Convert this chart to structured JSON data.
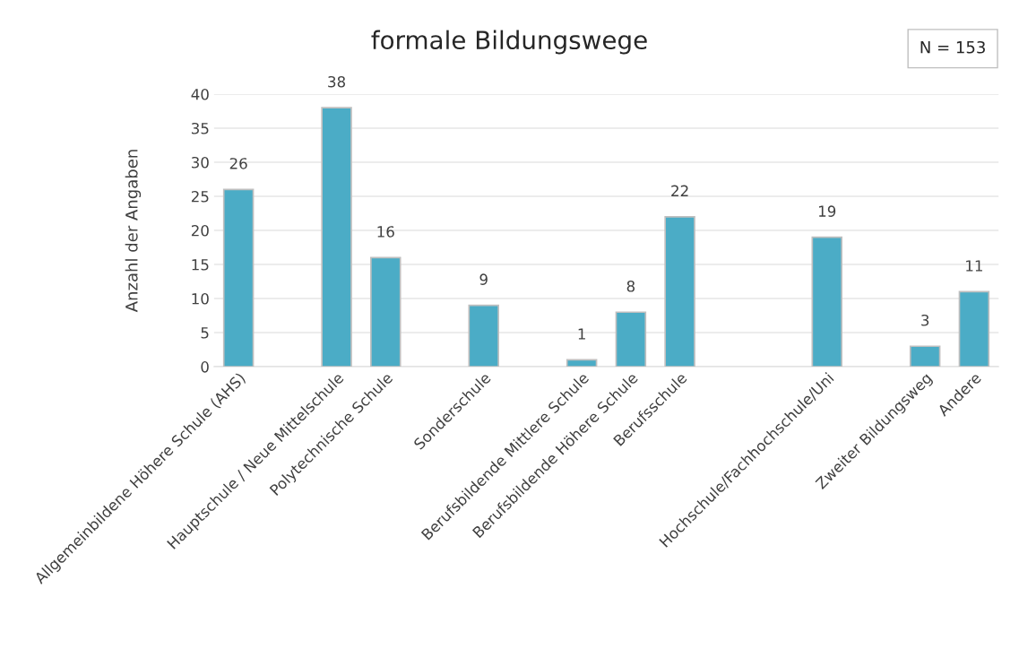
{
  "chart_data": {
    "type": "bar",
    "title": "formale Bildungswege",
    "ylabel": "Anzahl der Angaben",
    "categories": [
      "Allgemeinbildene Höhere Schule (AHS)",
      null,
      "Hauptschule / Neue Mittelschule",
      "Polytechnische Schule",
      null,
      "Sonderschule",
      null,
      "Berufsbildende Mittlere Schule",
      "Berufsbildende Höhere Schule",
      "Berufsschule",
      null,
      null,
      "Hochschule/Fachhochschule/Uni",
      null,
      "Zweiter Bildungsweg",
      "Andere"
    ],
    "values": [
      26,
      null,
      38,
      16,
      null,
      9,
      null,
      1,
      8,
      22,
      null,
      null,
      19,
      null,
      3,
      11
    ],
    "color": "#4bacc6",
    "ylim": [
      0,
      40
    ],
    "yticks": [
      0,
      5,
      10,
      15,
      20,
      25,
      30,
      35,
      40
    ],
    "grid": "y",
    "data_labels": true,
    "annotations": [
      "N = 153"
    ]
  }
}
